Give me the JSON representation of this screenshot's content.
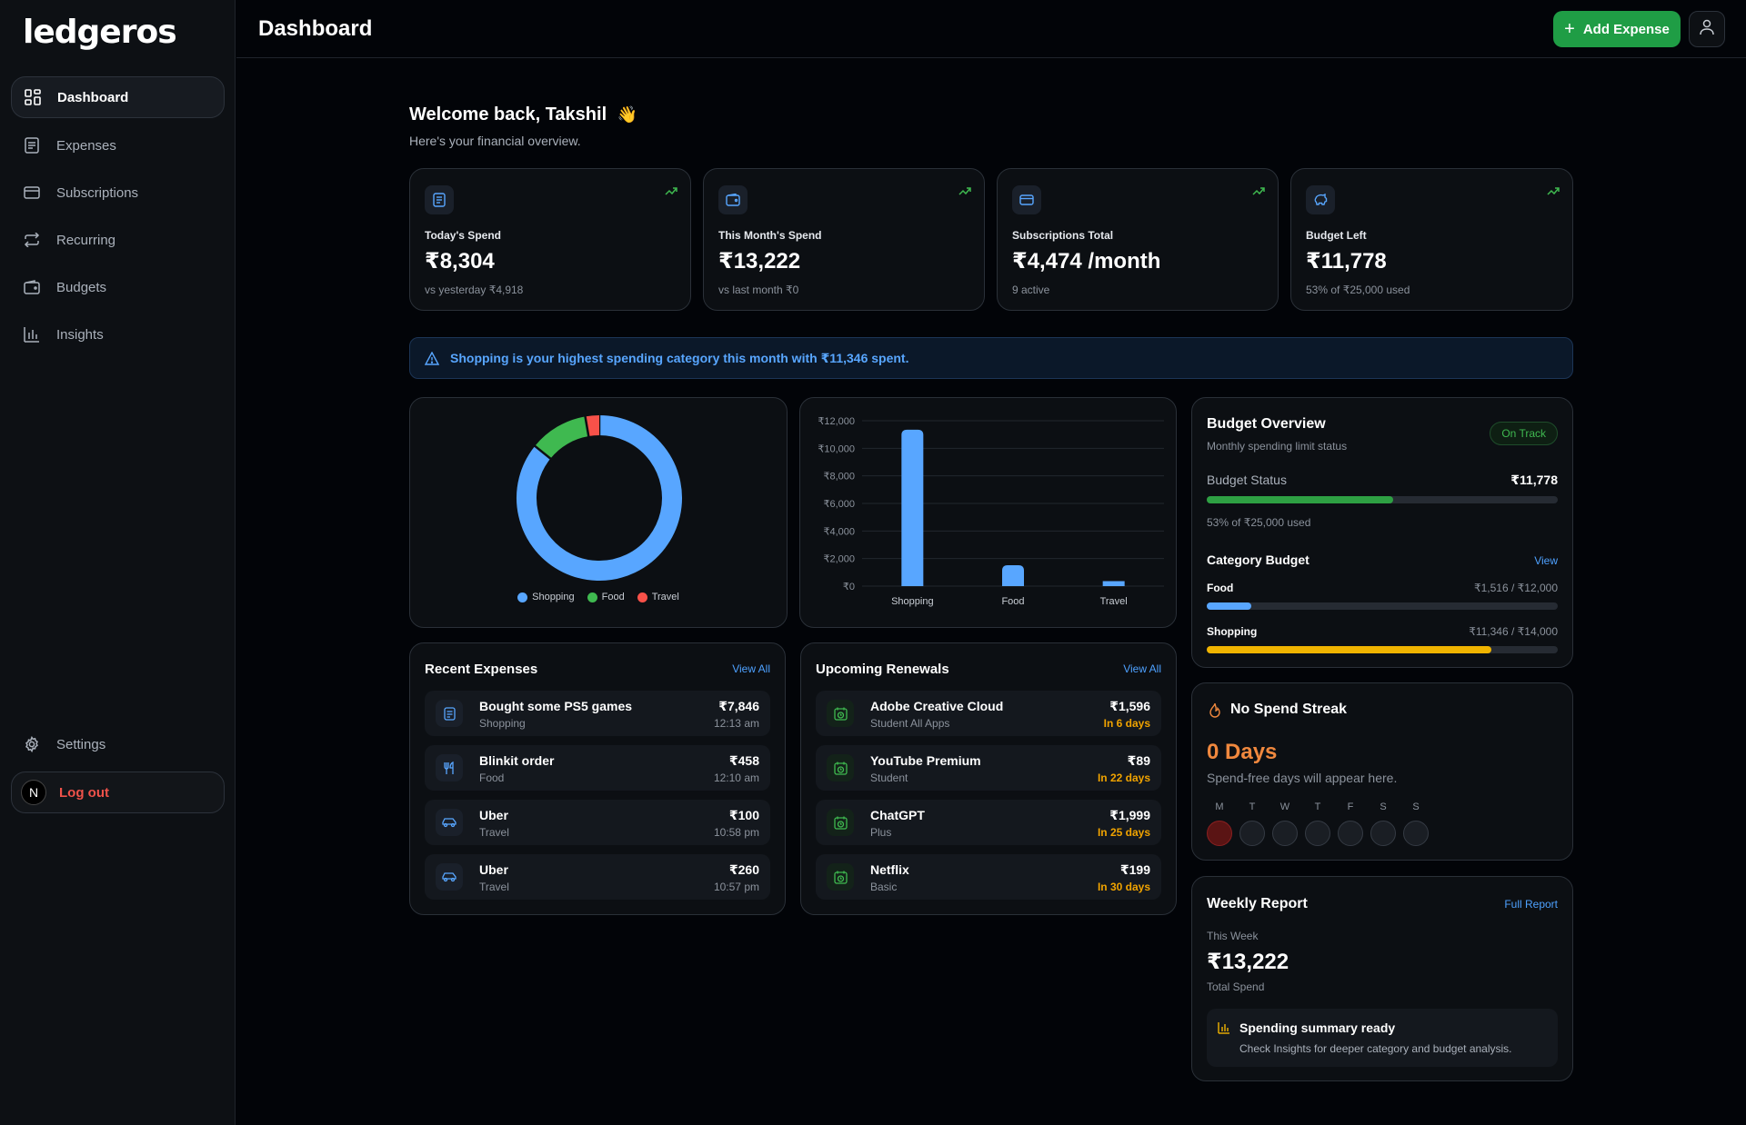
{
  "app": {
    "logo": "ledgeros",
    "page_title": "Dashboard"
  },
  "sidebar": {
    "items": [
      {
        "label": "Dashboard",
        "icon": "grid-icon",
        "active": true
      },
      {
        "label": "Expenses",
        "icon": "receipt-icon"
      },
      {
        "label": "Subscriptions",
        "icon": "card-icon"
      },
      {
        "label": "Recurring",
        "icon": "repeat-icon"
      },
      {
        "label": "Budgets",
        "icon": "wallet-icon"
      },
      {
        "label": "Insights",
        "icon": "bar-chart-icon"
      }
    ],
    "settings": "Settings",
    "logout": "Log out",
    "avatar_letter": "N"
  },
  "header": {
    "add_expense": "Add Expense"
  },
  "welcome": {
    "title": "Welcome back, Takshil",
    "emoji": "👋",
    "subtitle": "Here's your financial overview."
  },
  "stats": [
    {
      "label": "Today's Spend",
      "value": "₹8,304",
      "sub": "vs yesterday ₹4,918",
      "icon": "receipt-icon"
    },
    {
      "label": "This Month's Spend",
      "value": "₹13,222",
      "sub": "vs last month ₹0",
      "icon": "wallet-icon"
    },
    {
      "label": "Subscriptions Total",
      "value": "₹4,474 /month",
      "sub": "9 active",
      "icon": "card-icon"
    },
    {
      "label": "Budget Left",
      "value": "₹11,778",
      "sub": "53% of ₹25,000 used",
      "icon": "piggy-bank-icon"
    }
  ],
  "alert": {
    "text": "Shopping is your highest spending category this month with ₹11,346 spent."
  },
  "chart_data": [
    {
      "type": "pie",
      "donut": true,
      "categories": [
        "Shopping",
        "Food",
        "Travel"
      ],
      "values": [
        11346,
        1516,
        360
      ],
      "colors": [
        "#58a6ff",
        "#3fb950",
        "#f85149"
      ],
      "legend": "bottom"
    },
    {
      "type": "bar",
      "categories": [
        "Shopping",
        "Food",
        "Travel"
      ],
      "values": [
        11346,
        1516,
        360
      ],
      "ylim": [
        0,
        12000
      ],
      "yticks": [
        "₹0",
        "₹2,000",
        "₹4,000",
        "₹6,000",
        "₹8,000",
        "₹10,000",
        "₹12,000"
      ],
      "ytick_values": [
        0,
        2000,
        4000,
        6000,
        8000,
        10000,
        12000
      ],
      "grid": true,
      "color": "#58a6ff"
    }
  ],
  "recent": {
    "title": "Recent Expenses",
    "link": "View All",
    "items": [
      {
        "title": "Bought some PS5 games",
        "sub": "Shopping",
        "amount": "₹7,846",
        "time": "12:13 am",
        "icon": "receipt-icon"
      },
      {
        "title": "Blinkit order",
        "sub": "Food",
        "amount": "₹458",
        "time": "12:10 am",
        "icon": "utensils-icon"
      },
      {
        "title": "Uber",
        "sub": "Travel",
        "amount": "₹100",
        "time": "10:58 pm",
        "icon": "car-icon"
      },
      {
        "title": "Uber",
        "sub": "Travel",
        "amount": "₹260",
        "time": "10:57 pm",
        "icon": "car-icon"
      }
    ]
  },
  "renewals": {
    "title": "Upcoming Renewals",
    "link": "View All",
    "items": [
      {
        "title": "Adobe Creative Cloud",
        "sub": "Student All Apps",
        "amount": "₹1,596",
        "days": "In 6 days"
      },
      {
        "title": "YouTube Premium",
        "sub": "Student",
        "amount": "₹89",
        "days": "In 22 days"
      },
      {
        "title": "ChatGPT",
        "sub": "Plus",
        "amount": "₹1,999",
        "days": "In 25 days"
      },
      {
        "title": "Netflix",
        "sub": "Basic",
        "amount": "₹199",
        "days": "In 30 days"
      }
    ]
  },
  "budget": {
    "title": "Budget Overview",
    "subtitle": "Monthly spending limit status",
    "badge": "On Track",
    "status_label": "Budget Status",
    "status_value": "₹11,778",
    "status_fraction": 0.53,
    "status_sub": "53% of ₹25,000 used",
    "category_title": "Category Budget",
    "category_link": "View",
    "categories": [
      {
        "name": "Food",
        "value": "₹1,516 / ₹12,000",
        "fraction": 0.126,
        "color": "#58a6ff"
      },
      {
        "name": "Shopping",
        "value": "₹11,346 / ₹14,000",
        "fraction": 0.81,
        "color": "#f0b400"
      }
    ],
    "colors": {
      "status": "#2ea043"
    }
  },
  "streak": {
    "title": "No Spend Streak",
    "value": "0 Days",
    "sub": "Spend-free days will appear here.",
    "days": [
      "M",
      "T",
      "W",
      "T",
      "F",
      "S",
      "S"
    ]
  },
  "weekly": {
    "title": "Weekly Report",
    "link": "Full Report",
    "period": "This Week",
    "value": "₹13,222",
    "value_label": "Total Spend",
    "summary_title": "Spending summary ready",
    "summary_sub": "Check Insights for deeper category and budget analysis."
  }
}
